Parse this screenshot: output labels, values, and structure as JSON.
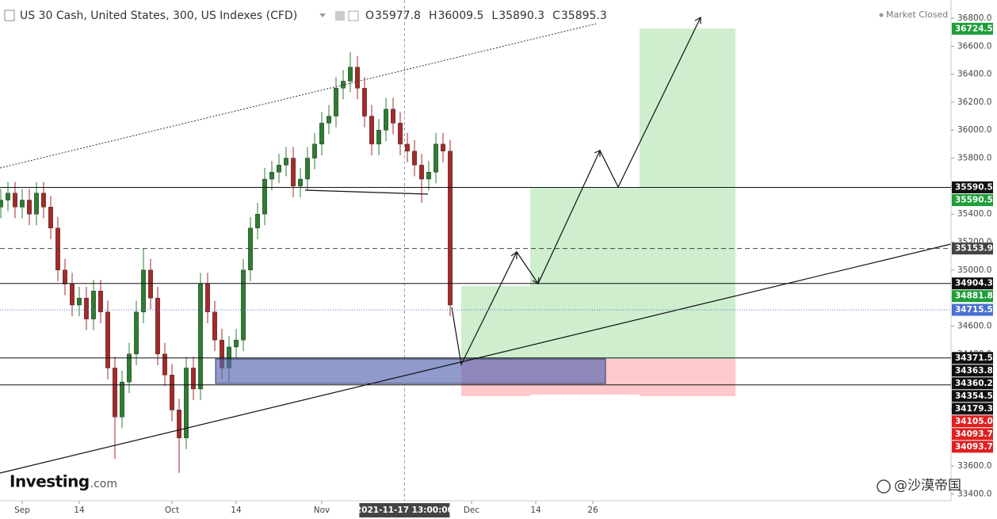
{
  "chart_data": {
    "type": "candlestick",
    "title": "US 30 Cash, United States, 300, US Indexes (CFD)",
    "ohlc_header": [
      {
        "label": "O",
        "value": 35977.8
      },
      {
        "label": "H",
        "value": 36009.5
      },
      {
        "label": "L",
        "value": 35890.3
      },
      {
        "label": "C",
        "value": 35895.3
      }
    ],
    "status": "Market Closed",
    "logo": "Investing",
    "logo_suffix": ".com",
    "watermark": "@沙漠帝国",
    "crosshair": {
      "x": 56.6,
      "label": "2021-11-17 13:00:00"
    },
    "up_color": "#2e7d32",
    "down_color": "#a52a2a",
    "categories": [
      null,
      null,
      null,
      null,
      null,
      null,
      null,
      null,
      null,
      null,
      null,
      null,
      null,
      null,
      null,
      null,
      null,
      null,
      null,
      null,
      null,
      null,
      null,
      null,
      null,
      null,
      null,
      null,
      null,
      null,
      null,
      null,
      null,
      null,
      null,
      null,
      null,
      null,
      null,
      null,
      null,
      null,
      null,
      null,
      null,
      null,
      null,
      null,
      null,
      null,
      null,
      null,
      null,
      null,
      null,
      null,
      null,
      null,
      null,
      null,
      null,
      null,
      null,
      null
    ],
    "open": [
      35450,
      35500,
      35550,
      35450,
      35500,
      35400,
      35550,
      35450,
      35300,
      35000,
      34900,
      34750,
      34800,
      34650,
      34850,
      34700,
      34300,
      33950,
      34200,
      34400,
      34700,
      35000,
      34800,
      34400,
      34250,
      34000,
      33800,
      34300,
      34150,
      34900,
      34700,
      34500,
      34300,
      34450,
      34500,
      35000,
      35300,
      35400,
      35650,
      35700,
      35750,
      35800,
      35600,
      35650,
      35800,
      35900,
      36050,
      36100,
      36300,
      36350,
      36450,
      36300,
      36100,
      35900,
      36000,
      36150,
      36050,
      35900,
      35850,
      35750,
      35650,
      35700,
      35900,
      35850
    ],
    "high": [
      35580,
      35630,
      35630,
      35580,
      35580,
      35630,
      35630,
      35530,
      35380,
      35080,
      34980,
      34880,
      34880,
      34930,
      34930,
      34780,
      34380,
      34280,
      34480,
      34780,
      35150,
      35080,
      34880,
      34480,
      34330,
      34080,
      34380,
      34380,
      34980,
      34980,
      34780,
      34580,
      34530,
      34580,
      35080,
      35380,
      35480,
      35730,
      35780,
      35830,
      35880,
      35880,
      35730,
      35880,
      35980,
      36130,
      36180,
      36380,
      36430,
      36560,
      36530,
      36380,
      36180,
      36080,
      36230,
      36230,
      36130,
      35980,
      35930,
      35830,
      35780,
      35980,
      35980,
      35930
    ],
    "low": [
      35370,
      35420,
      35370,
      35370,
      35320,
      35320,
      35370,
      35220,
      34920,
      34820,
      34670,
      34670,
      34570,
      34570,
      34620,
      34220,
      33650,
      33870,
      34120,
      34320,
      34620,
      34720,
      34320,
      34170,
      33920,
      33550,
      33720,
      34070,
      34070,
      34620,
      34420,
      34220,
      34200,
      34370,
      34420,
      34920,
      35220,
      35320,
      35570,
      35620,
      35670,
      35520,
      35520,
      35570,
      35720,
      35820,
      35970,
      36020,
      36220,
      36270,
      36220,
      36020,
      35820,
      35820,
      35920,
      35970,
      35820,
      35770,
      35670,
      35480,
      35570,
      35620,
      35770,
      34670
    ],
    "close": [
      35500,
      35550,
      35450,
      35500,
      35400,
      35550,
      35450,
      35300,
      35000,
      34900,
      34750,
      34800,
      34650,
      34850,
      34700,
      34300,
      33950,
      34200,
      34400,
      34700,
      35000,
      34800,
      34400,
      34250,
      34000,
      33800,
      34300,
      34150,
      34900,
      34700,
      34500,
      34300,
      34450,
      34500,
      35000,
      35300,
      35400,
      35650,
      35700,
      35750,
      35800,
      35600,
      35650,
      35800,
      35900,
      36050,
      36100,
      36300,
      36350,
      36450,
      36300,
      36100,
      35900,
      36000,
      36150,
      36050,
      35900,
      35850,
      35750,
      35650,
      35700,
      35900,
      35850,
      34750
    ],
    "xlim": [
      -0.11,
      133.22
    ],
    "xticks": [
      {
        "value": 3,
        "label": "Sep"
      },
      {
        "value": 11,
        "label": "14"
      },
      {
        "value": 24,
        "label": "Oct"
      },
      {
        "value": 33,
        "label": "14"
      },
      {
        "value": 45,
        "label": "Nov"
      },
      {
        "value": 66,
        "label": "Dec"
      },
      {
        "value": 75,
        "label": "14"
      },
      {
        "value": 83,
        "label": "26"
      }
    ],
    "ylim": [
      33351,
      36930
    ],
    "yticks": [
      {
        "value": 33400,
        "label": "33400.0"
      },
      {
        "value": 33600,
        "label": "33600.0"
      },
      {
        "value": 33800,
        "label": "33800.0"
      },
      {
        "value": 34000,
        "label": "34000.0"
      },
      {
        "value": 34200,
        "label": "34200.0"
      },
      {
        "value": 34400,
        "label": "34400.0"
      },
      {
        "value": 34600,
        "label": "34600.0"
      },
      {
        "value": 34800,
        "label": "34800.0"
      },
      {
        "value": 35000,
        "label": "35000.0"
      },
      {
        "value": 35200,
        "label": "35200.0"
      },
      {
        "value": 35400,
        "label": "35400.0"
      },
      {
        "value": 35600,
        "label": "35600.0"
      },
      {
        "value": 35800,
        "label": "35800.0"
      },
      {
        "value": 36000,
        "label": "36000.0"
      },
      {
        "value": 36200,
        "label": "36200.0"
      },
      {
        "value": 36400,
        "label": "36400.0"
      },
      {
        "value": 36600,
        "label": "36600.0"
      },
      {
        "value": 36800,
        "label": "36800.0"
      }
    ],
    "price_tags": [
      {
        "value": 36724.5,
        "color": "#1e9e3a"
      },
      {
        "value": 35590.5,
        "color": "#111111",
        "line": "solid"
      },
      {
        "value": 35590.5,
        "color": "#1e9e3a"
      },
      {
        "value": 35153.9,
        "color": "#444444",
        "line": "dashed"
      },
      {
        "value": 34904.3,
        "color": "#111111",
        "line": "solid"
      },
      {
        "value": 34881.8,
        "color": "#1e9e3a"
      },
      {
        "value": 34715.5,
        "color": "#4a6fd0",
        "line": "dotted"
      },
      {
        "value": 34371.5,
        "color": "#111111",
        "line": "solid"
      },
      {
        "value": 34363.8,
        "color": "#111111"
      },
      {
        "value": 34360.2,
        "color": "#111111"
      },
      {
        "value": 34354.5,
        "color": "#111111"
      },
      {
        "value": 34179.3,
        "color": "#111111",
        "line": "solid"
      },
      {
        "value": 34105,
        "label": "34105.0",
        "color": "#e02020"
      },
      {
        "value": 34093.7,
        "color": "#e02020"
      },
      {
        "value": 34093.7,
        "color": "#e02020"
      }
    ]
  }
}
